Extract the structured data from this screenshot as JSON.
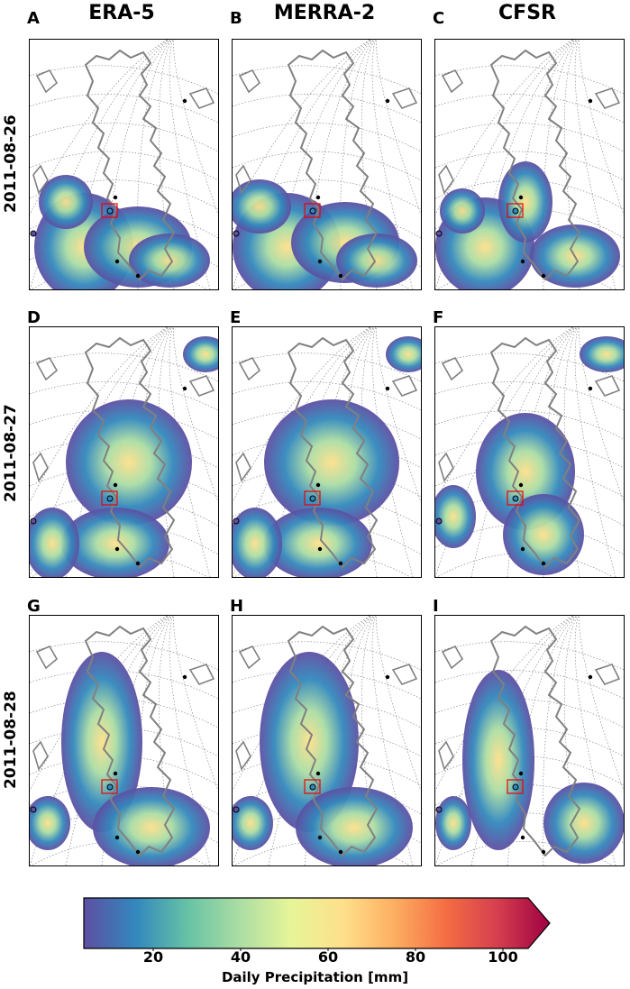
{
  "columns": [
    "ERA-5",
    "MERRA-2",
    "CFSR"
  ],
  "rows": [
    "2011-08-26",
    "2011-08-27",
    "2011-08-28"
  ],
  "panels": [
    "A",
    "B",
    "C",
    "D",
    "E",
    "F",
    "G",
    "H",
    "I"
  ],
  "colorbar": {
    "label": "Daily Precipitation [mm]",
    "ticks": [
      "20",
      "40",
      "60",
      "80",
      "100"
    ],
    "colors": [
      "#5e4fa2",
      "#3288bd",
      "#66c2a5",
      "#abdda4",
      "#e6f598",
      "#fee08b",
      "#fdae61",
      "#f46d43",
      "#d53e4f",
      "#9e0142"
    ]
  }
}
